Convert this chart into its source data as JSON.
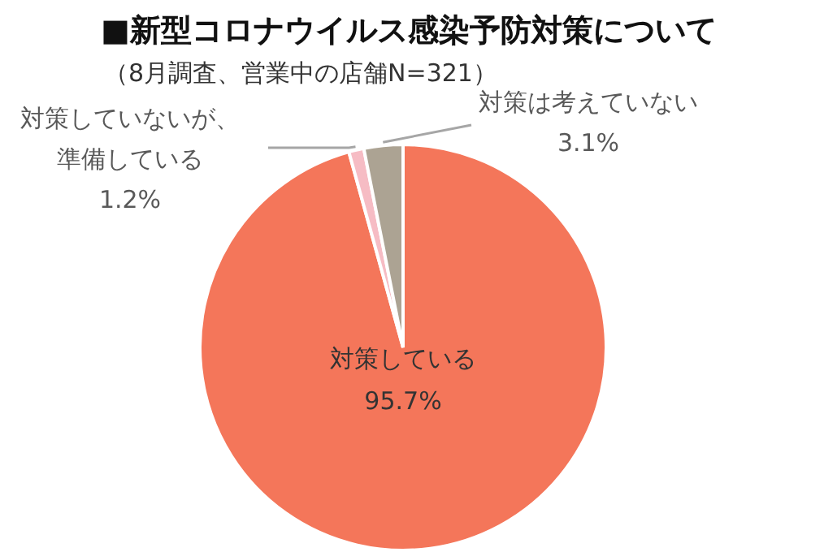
{
  "chart_data": {
    "type": "pie",
    "title": "■新型コロナウイルス感染予防対策について",
    "subtitle": "（8月調査、営業中の店舗N=321）",
    "categories": [
      "対策している",
      "対策していないが、準備している",
      "対策は考えていない"
    ],
    "values": [
      95.7,
      1.2,
      3.1
    ],
    "colors": [
      "#f4765a",
      "#f6bcc4",
      "#aca393"
    ],
    "value_labels": [
      "95.7%",
      "1.2%",
      "3.1%"
    ],
    "legend": false
  }
}
